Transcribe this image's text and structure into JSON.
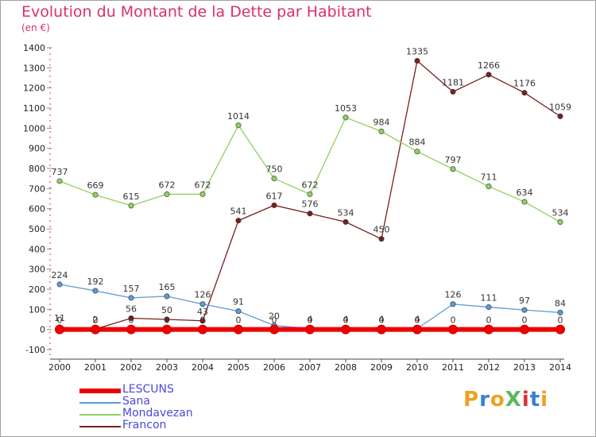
{
  "title": "Evolution du Montant de la Dette par Habitant",
  "subtitle": "(en €)",
  "logo": {
    "text": "ProXiti",
    "colors": [
      "#f0a020",
      "#3a7fd0",
      "#f0a020",
      "#5cb85c",
      "#e03030",
      "#3a7fd0",
      "#f0a020"
    ]
  },
  "chart_data": {
    "type": "line",
    "x": [
      2000,
      2001,
      2002,
      2003,
      2004,
      2005,
      2006,
      2007,
      2008,
      2009,
      2010,
      2011,
      2012,
      2013,
      2014
    ],
    "ylim": [
      -100,
      1400
    ],
    "yticks": [
      -100,
      0,
      100,
      200,
      300,
      400,
      500,
      600,
      700,
      800,
      900,
      1000,
      1100,
      1200,
      1300,
      1400
    ],
    "grid": false,
    "legend_position": "bottom-left",
    "series": [
      {
        "name": "LESCUNS",
        "color": "#ee0000",
        "values": [
          0,
          0,
          0,
          0,
          0,
          0,
          0,
          0,
          0,
          0,
          0,
          0,
          0,
          0,
          0
        ],
        "labels": [
          "0",
          "0",
          "0",
          "0",
          "0",
          "0",
          "0",
          "0",
          "0",
          "0",
          "0",
          "0",
          "0",
          "0",
          "0"
        ]
      },
      {
        "name": "Sana",
        "color": "#5b9bd5",
        "values": [
          224,
          192,
          157,
          165,
          126,
          91,
          20,
          4,
          4,
          4,
          4,
          126,
          111,
          97,
          84
        ],
        "labels": [
          "224",
          "192",
          "157",
          "165",
          "126",
          "91",
          "20",
          "4",
          "4",
          "4",
          "4",
          "126",
          "111",
          "97",
          "84"
        ]
      },
      {
        "name": "Mondavezan",
        "color": "#90d060",
        "values": [
          737,
          669,
          615,
          672,
          672,
          1014,
          750,
          672,
          1053,
          984,
          884,
          797,
          711,
          634,
          534
        ],
        "labels": [
          "737",
          "669",
          "615",
          "672",
          "672",
          "1014",
          "750",
          "672",
          "1053",
          "984",
          "884",
          "797",
          "711",
          "634",
          "534"
        ]
      },
      {
        "name": "Francon",
        "color": "#7a1f1f",
        "values": [
          11,
          2,
          56,
          50,
          43,
          541,
          617,
          576,
          534,
          450,
          1335,
          1181,
          1266,
          1176,
          1059
        ],
        "labels": [
          "11",
          "2",
          "56",
          "50",
          "43",
          "541",
          "617",
          "576",
          "534",
          "450",
          "1335",
          "1181",
          "1266",
          "1176",
          "1059"
        ]
      }
    ]
  }
}
